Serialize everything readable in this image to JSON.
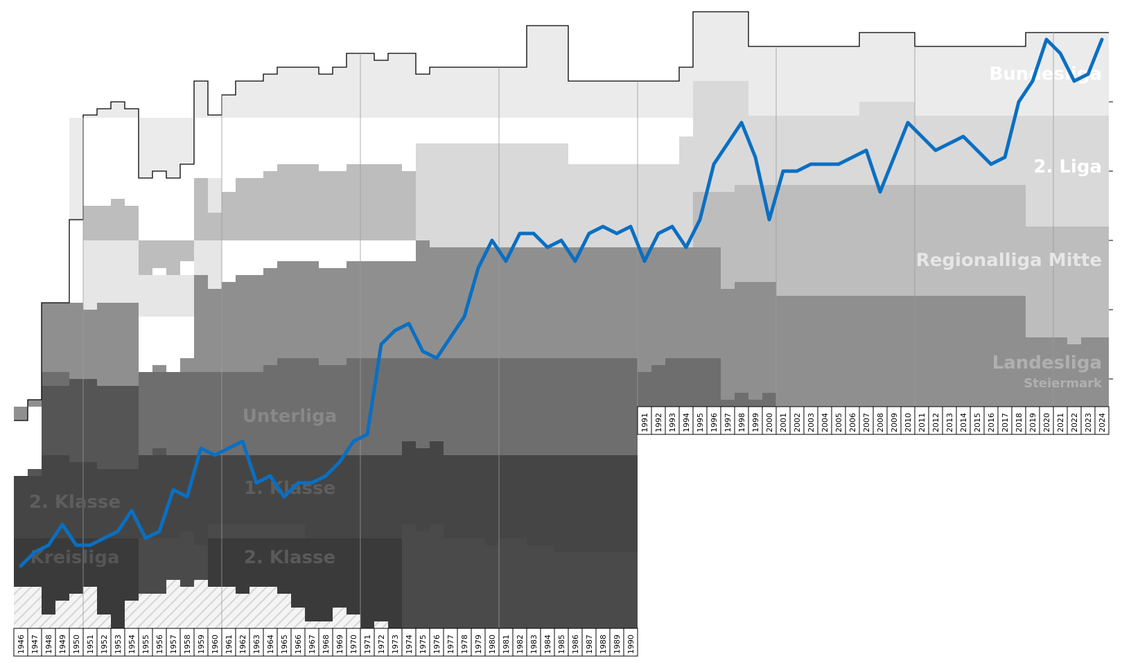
{
  "chart_data": {
    "type": "area",
    "x": [
      1946,
      1947,
      1948,
      1949,
      1950,
      1951,
      1952,
      1953,
      1954,
      1955,
      1956,
      1957,
      1958,
      1959,
      1960,
      1961,
      1962,
      1963,
      1964,
      1965,
      1966,
      1967,
      1968,
      1969,
      1970,
      1971,
      1972,
      1973,
      1974,
      1975,
      1976,
      1977,
      1978,
      1979,
      1980,
      1981,
      1982,
      1983,
      1984,
      1985,
      1986,
      1987,
      1988,
      1989,
      1990,
      1991,
      1992,
      1993,
      1994,
      1995,
      1996,
      1997,
      1998,
      1999,
      2000,
      2001,
      2002,
      2003,
      2004,
      2005,
      2006,
      2007,
      2008,
      2009,
      2010,
      2011,
      2012,
      2013,
      2014,
      2015,
      2016,
      2017,
      2018,
      2019,
      2020,
      2021,
      2022,
      2023,
      2024
    ],
    "series": [
      {
        "values": [
          70,
          68,
          67,
          64,
          67,
          67,
          66,
          65,
          62,
          66,
          65,
          59,
          60,
          53,
          54,
          53,
          52,
          58,
          57,
          60,
          58,
          58,
          57,
          55,
          52,
          51,
          38,
          36,
          35,
          39,
          40,
          37,
          34,
          27,
          23,
          26,
          22,
          22,
          24,
          23,
          26,
          22,
          21,
          22,
          21,
          26,
          22,
          21,
          24,
          20,
          12,
          9,
          6,
          11,
          20,
          13,
          13,
          12,
          12,
          12,
          11,
          10,
          16,
          11,
          6,
          8,
          10,
          9,
          8,
          10,
          12,
          11,
          3,
          0,
          -6,
          -4,
          0,
          -1,
          -6
        ]
      }
    ],
    "league_labels": [
      "Bundesliga",
      "2. Liga",
      "Regionalliga Mitte",
      "Landesliga",
      "Steiermark",
      "Unterliga",
      "1. Klasse",
      "2. Klasse",
      "2. Klasse",
      "Kreisliga"
    ],
    "tick_labels_top_row": [
      "1946",
      "1947",
      "1948",
      "1949",
      "1950",
      "1951",
      "1952",
      "1953",
      "1954",
      "1955",
      "1956",
      "1957",
      "1958",
      "1959",
      "1960",
      "1961",
      "1962",
      "1963",
      "1964",
      "1965",
      "1966",
      "1967",
      "1968",
      "1969",
      "1970",
      "1971",
      "1972",
      "1973",
      "1974",
      "1975",
      "1976",
      "1977",
      "1978",
      "1979",
      "1980",
      "1981",
      "1982",
      "1983",
      "1984",
      "1985",
      "1986",
      "1987",
      "1988",
      "1989",
      "1990"
    ],
    "tick_labels_bottom_row": [
      "1991",
      "1992",
      "1993",
      "1994",
      "1995",
      "1996",
      "1997",
      "1998",
      "1999",
      "2000",
      "2001",
      "2002",
      "2003",
      "2004",
      "2005",
      "2006",
      "2007",
      "2008",
      "2009",
      "2010",
      "2011",
      "2012",
      "2013",
      "2014",
      "2015",
      "2016",
      "2017",
      "2018",
      "2019",
      "2020",
      "2021",
      "2022",
      "2023",
      "2024"
    ],
    "colors": {
      "line": "#0a6fc2",
      "bundesliga": "#ebebeb",
      "zweite_liga": "#d9d9d9",
      "regionalliga": "#bdbdbd",
      "landesliga": "#8f8f8f",
      "unterliga": "#6e6e6e",
      "erste_klasse": "#555555",
      "zweite_klasse": "#454545",
      "kreisliga": "#3a3a3a",
      "hatch": "#e6e6e6"
    }
  }
}
